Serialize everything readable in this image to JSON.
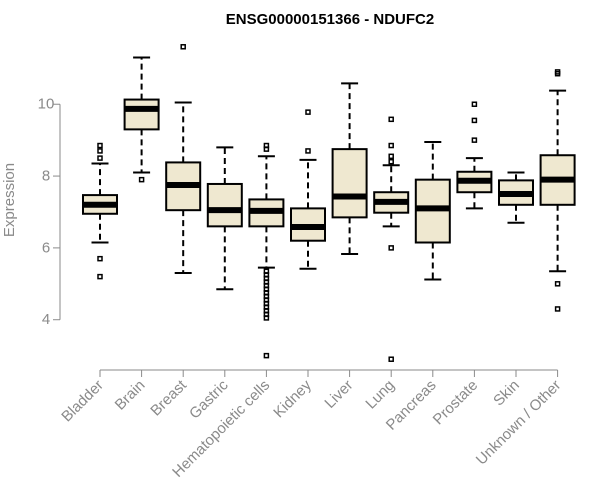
{
  "chart_data": {
    "type": "boxplot",
    "title": "ENSG00000151366 - NDUFC2",
    "ylabel": "Expression",
    "xlabel": "",
    "ylim": [
      2.6,
      11.9
    ],
    "yticks": [
      "4",
      "6",
      "8",
      "10"
    ],
    "box_fill": "#efe8d0",
    "categories": [
      "Bladder",
      "Brain",
      "Breast",
      "Gastric",
      "Hematopoietic cells",
      "Kidney",
      "Liver",
      "Lung",
      "Pancreas",
      "Prostate",
      "Skin",
      "Unknown / Other"
    ],
    "boxes": [
      {
        "q1": 6.95,
        "median": 7.2,
        "q3": 7.47,
        "whisker_low": 6.15,
        "whisker_high": 8.35,
        "outliers": [
          8.5,
          8.7,
          8.85,
          5.7,
          5.2
        ]
      },
      {
        "q1": 9.3,
        "median": 9.87,
        "q3": 10.13,
        "whisker_low": 8.1,
        "whisker_high": 11.3,
        "outliers": [
          7.9
        ]
      },
      {
        "q1": 7.05,
        "median": 7.75,
        "q3": 8.38,
        "whisker_low": 5.3,
        "whisker_high": 10.05,
        "outliers": [
          11.6
        ]
      },
      {
        "q1": 6.6,
        "median": 7.05,
        "q3": 7.78,
        "whisker_low": 4.85,
        "whisker_high": 8.8,
        "outliers": []
      },
      {
        "q1": 6.6,
        "median": 7.03,
        "q3": 7.35,
        "whisker_low": 5.45,
        "whisker_high": 8.55,
        "outliers": [
          8.75,
          8.85,
          5.35,
          5.25,
          5.15,
          5.05,
          4.95,
          4.85,
          4.75,
          4.65,
          4.55,
          4.45,
          4.35,
          4.25,
          4.15,
          4.05,
          3.0
        ]
      },
      {
        "q1": 6.2,
        "median": 6.58,
        "q3": 7.1,
        "whisker_low": 5.42,
        "whisker_high": 8.45,
        "outliers": [
          9.78,
          8.7
        ]
      },
      {
        "q1": 6.85,
        "median": 7.43,
        "q3": 8.75,
        "whisker_low": 5.83,
        "whisker_high": 10.58,
        "outliers": []
      },
      {
        "q1": 6.98,
        "median": 7.28,
        "q3": 7.55,
        "whisker_low": 6.6,
        "whisker_high": 8.3,
        "outliers": [
          9.58,
          8.85,
          8.55,
          8.4,
          6.0,
          2.9
        ]
      },
      {
        "q1": 6.15,
        "median": 7.1,
        "q3": 7.9,
        "whisker_low": 5.12,
        "whisker_high": 8.95,
        "outliers": []
      },
      {
        "q1": 7.55,
        "median": 7.87,
        "q3": 8.12,
        "whisker_low": 7.1,
        "whisker_high": 8.5,
        "outliers": [
          10.0,
          9.55,
          9.0
        ]
      },
      {
        "q1": 7.2,
        "median": 7.5,
        "q3": 7.88,
        "whisker_low": 6.7,
        "whisker_high": 8.1,
        "outliers": []
      },
      {
        "q1": 7.2,
        "median": 7.9,
        "q3": 8.58,
        "whisker_low": 5.35,
        "whisker_high": 10.38,
        "outliers": [
          10.9,
          10.85,
          5.0,
          4.3
        ]
      }
    ]
  }
}
